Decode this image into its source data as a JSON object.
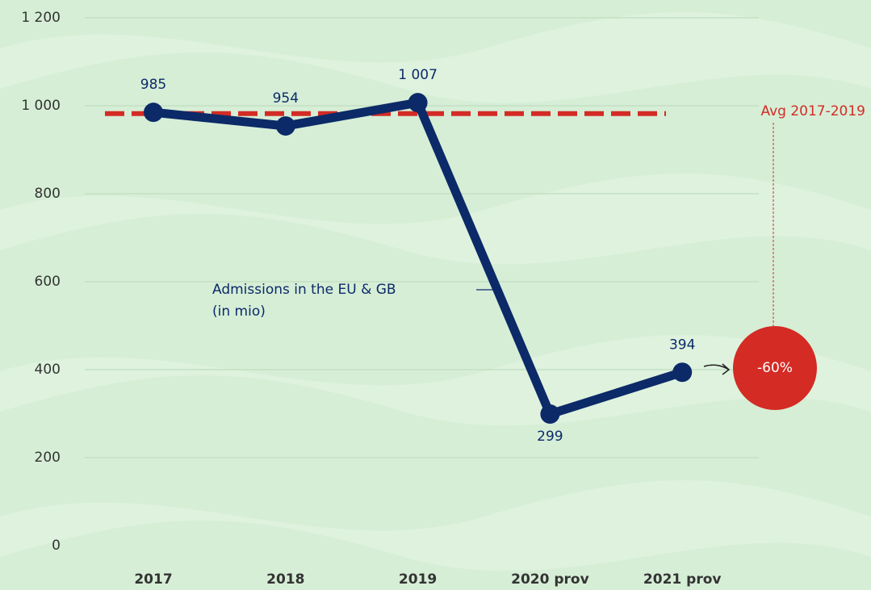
{
  "chart_data": {
    "type": "line",
    "categories": [
      "2017",
      "2018",
      "2019",
      "2020 prov",
      "2021 prov"
    ],
    "series": [
      {
        "name": [
          "Admissions in the EU & GB",
          "(in mio)"
        ],
        "color": "#0c2a68",
        "values": [
          985,
          954,
          1007,
          299,
          394
        ],
        "value_labels": [
          "985",
          "954",
          "1 007",
          "299",
          "394"
        ]
      }
    ],
    "ylim": [
      0,
      1200
    ],
    "yticks": [
      0,
      200,
      400,
      600,
      800,
      {
        "value": 1000,
        "label": "1 000"
      },
      {
        "value": 1200,
        "label": "1 200"
      }
    ],
    "grid": true,
    "reference_line": {
      "label": "Avg 2017-2019",
      "value": 982,
      "color": "#d42b25"
    },
    "annotation": {
      "label": "-60%",
      "color": "#d42b25"
    }
  }
}
